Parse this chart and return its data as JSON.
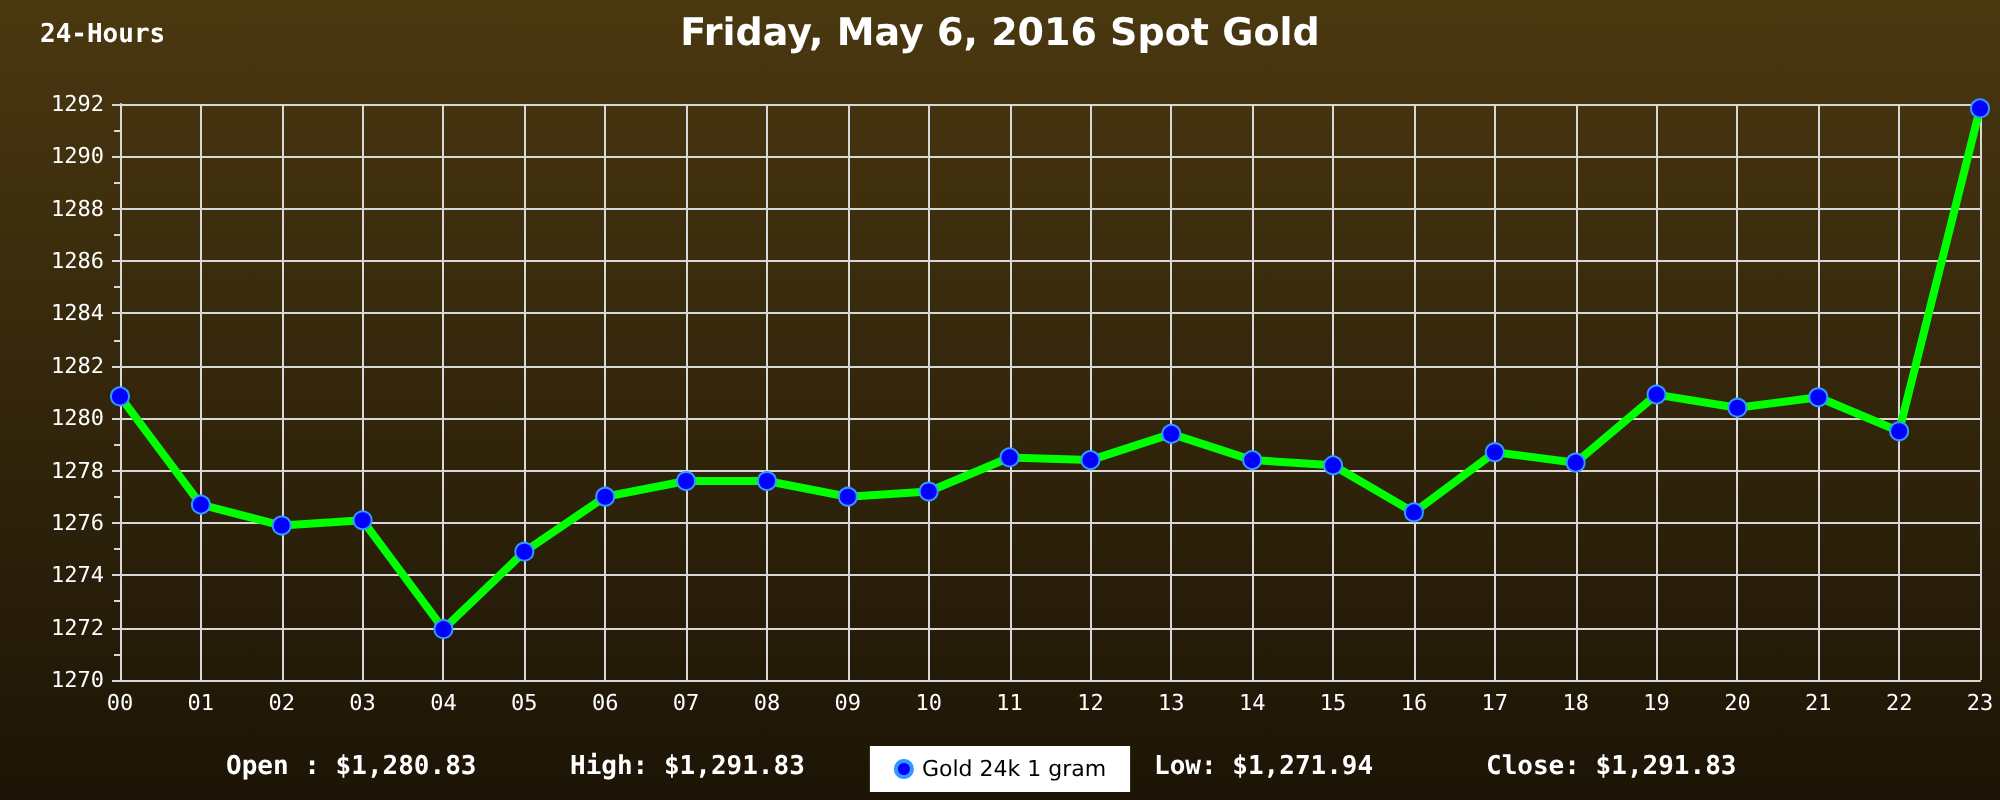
{
  "chart_data": {
    "type": "line",
    "title": "Friday, May 6, 2016 Spot Gold",
    "categories": [
      "00",
      "01",
      "02",
      "03",
      "04",
      "05",
      "06",
      "07",
      "08",
      "09",
      "10",
      "11",
      "12",
      "13",
      "14",
      "15",
      "16",
      "17",
      "18",
      "19",
      "20",
      "21",
      "22",
      "23"
    ],
    "series": [
      {
        "name": "Gold 24k 1 gram",
        "color": "#00ff00",
        "values": [
          1280.83,
          1276.7,
          1275.9,
          1276.1,
          1271.94,
          1274.9,
          1277.0,
          1277.6,
          1277.6,
          1277.0,
          1277.2,
          1278.5,
          1278.4,
          1279.4,
          1278.4,
          1278.2,
          1276.4,
          1278.7,
          1278.3,
          1280.9,
          1280.4,
          1280.8,
          1279.5,
          1291.83
        ]
      }
    ],
    "ylim": [
      1270,
      1292
    ],
    "yticks": [
      1270,
      1272,
      1274,
      1276,
      1278,
      1280,
      1282,
      1284,
      1286,
      1288,
      1290,
      1292
    ],
    "grid": true,
    "legend": "bottom",
    "marker": "circle",
    "annotations": [
      "24-Hours",
      "Open : $1,280.83",
      "High: $1,291.83",
      "Low: $1,271.94",
      "Close: $1,291.83"
    ]
  }
}
